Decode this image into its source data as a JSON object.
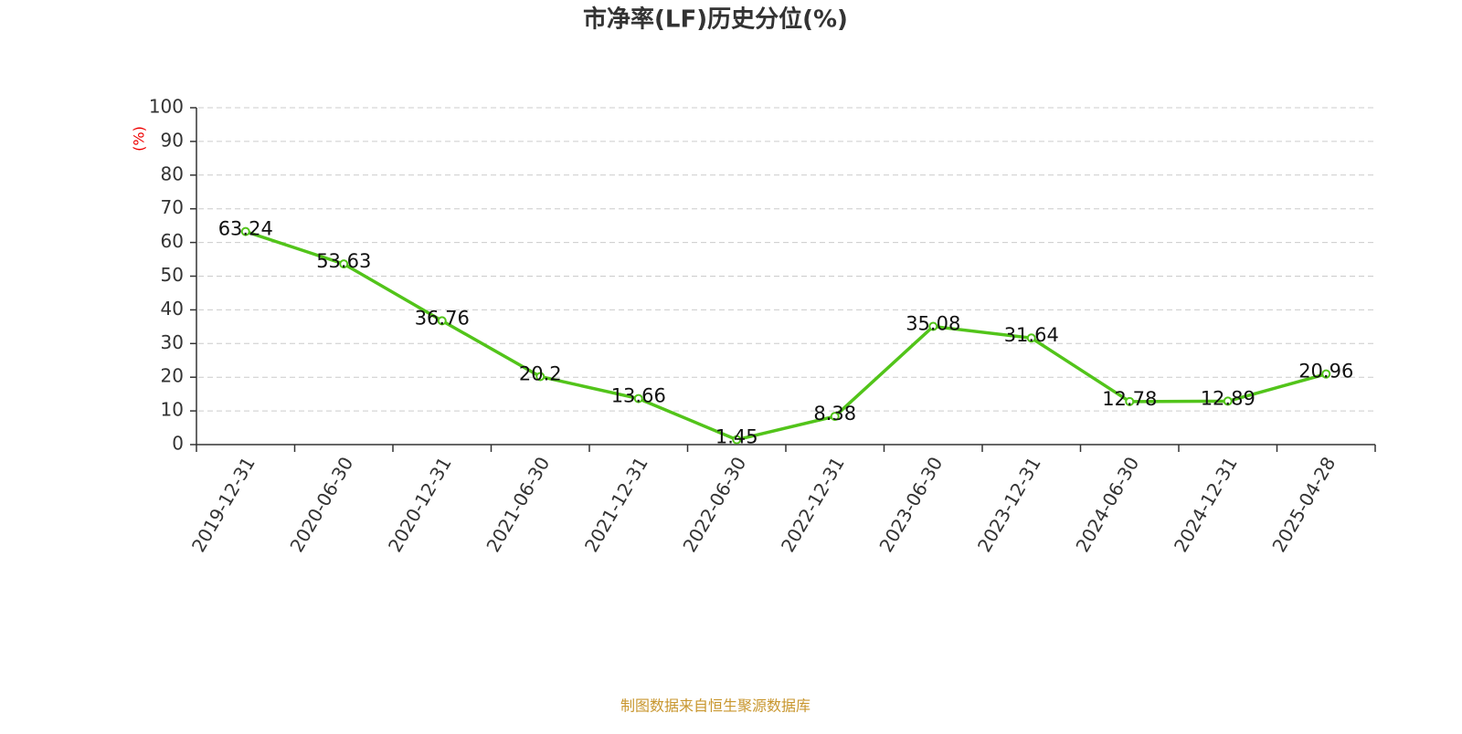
{
  "chart_data": {
    "type": "line",
    "title": "市净率(LF)历史分位(%)",
    "y_label": "(%)",
    "footer": "制图数据来自恒生聚源数据库",
    "categories": [
      "2019-12-31",
      "2020-06-30",
      "2020-12-31",
      "2021-06-30",
      "2021-12-31",
      "2022-06-30",
      "2022-12-31",
      "2023-06-30",
      "2023-12-31",
      "2024-06-30",
      "2024-12-31",
      "2025-04-28"
    ],
    "series": [
      {
        "color": "#52c41a",
        "values": [
          63.24,
          53.63,
          36.76,
          20.2,
          13.66,
          1.45,
          8.38,
          35.08,
          31.64,
          12.78,
          12.89,
          20.96
        ]
      }
    ],
    "ylim": [
      0,
      100
    ],
    "yticks": [
      0,
      10,
      20,
      30,
      40,
      50,
      60,
      70,
      80,
      90,
      100
    ],
    "grid": true
  }
}
